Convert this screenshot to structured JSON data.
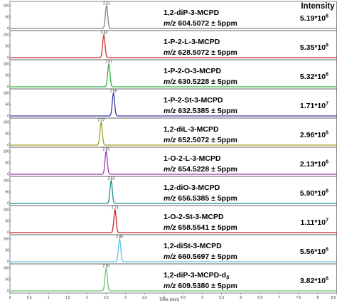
{
  "chart_data": {
    "type": "line",
    "title": "",
    "intensity_header": "Intensity",
    "xlabel": "Time (min)",
    "xlim": [
      0,
      8.5
    ],
    "x_ticks": [
      "0",
      "0.5",
      "1",
      "1.5",
      "2",
      "2.5",
      "3",
      "3.5",
      "4",
      "4.5",
      "5",
      "5.5",
      "6",
      "6.5",
      "7",
      "7.5",
      "8",
      "8.5"
    ],
    "y_ticks": [
      "0",
      "50",
      "100"
    ],
    "ylim": [
      0,
      100
    ],
    "series": [
      {
        "name": "1,2-diP-3-MCPD",
        "mz_prefix": "m/z",
        "mz_value": "604.5072 ± 5ppm",
        "intensity_base": "5.19*10",
        "intensity_exp": "6",
        "peak_rt": 2.51,
        "peak_label": "2.51",
        "color": "#808080"
      },
      {
        "name": "1-P-2-L-3-MCPD",
        "mz_prefix": "m/z",
        "mz_value": "628.5072 ± 5ppm",
        "intensity_base": "5.35*10",
        "intensity_exp": "6",
        "peak_rt": 2.44,
        "peak_label": "2.44",
        "color": "#d03030"
      },
      {
        "name": "1-P-2-O-3-MCPD",
        "mz_prefix": "m/z",
        "mz_value": "630.5228 ± 5ppm",
        "intensity_base": "5.32*10",
        "intensity_exp": "6",
        "peak_rt": 2.57,
        "peak_label": "2.57",
        "color": "#30b040"
      },
      {
        "name": "1-P-2-St-3-MCPD",
        "mz_prefix": "m/z",
        "mz_value": "632.5385 ± 5ppm",
        "intensity_base": "1.71*10",
        "intensity_exp": "7",
        "peak_rt": 2.69,
        "peak_label": "2.69",
        "color": "#3a3aa0"
      },
      {
        "name": "1,2-diL-3-MCPD",
        "mz_prefix": "m/z",
        "mz_value": "652.5072 ± 5ppm",
        "intensity_base": "2.96*10",
        "intensity_exp": "6",
        "peak_rt": 2.37,
        "peak_label": "2.37",
        "color": "#a0a020"
      },
      {
        "name": "1-O-2-L-3-MCPD",
        "mz_prefix": "m/z",
        "mz_value": "654.5228 ± 5ppm",
        "intensity_base": "2.13*10",
        "intensity_exp": "6",
        "peak_rt": 2.5,
        "peak_label": "2.50",
        "color": "#9a3ab0"
      },
      {
        "name": "1,2-diO-3-MCPD",
        "mz_prefix": "m/z",
        "mz_value": "656.5385 ± 5ppm",
        "intensity_base": "5.90*10",
        "intensity_exp": "6",
        "peak_rt": 2.63,
        "peak_label": "2.63",
        "color": "#208a8a"
      },
      {
        "name": "1-O-2-St-3-MCPD",
        "mz_prefix": "m/z",
        "mz_value": "658.5541 ± 5ppm",
        "intensity_base": "1.11*10",
        "intensity_exp": "7",
        "peak_rt": 2.73,
        "peak_label": "2.73",
        "color": "#d02020"
      },
      {
        "name": "1,2-diSt-3-MCPD",
        "mz_prefix": "m/z",
        "mz_value": "660.5697 ± 5ppm",
        "intensity_base": "5.56*10",
        "intensity_exp": "6",
        "peak_rt": 2.85,
        "peak_label": "2.85",
        "color": "#60c0e0"
      },
      {
        "name": "1,2-diP-3-MCPD-d",
        "name_sub": "5",
        "mz_prefix": "m/z",
        "mz_value": "609.5380 ± 5ppm",
        "intensity_base": "3.82*10",
        "intensity_exp": "6",
        "peak_rt": 2.5,
        "peak_label": "2.50",
        "color": "#70c070"
      }
    ]
  }
}
